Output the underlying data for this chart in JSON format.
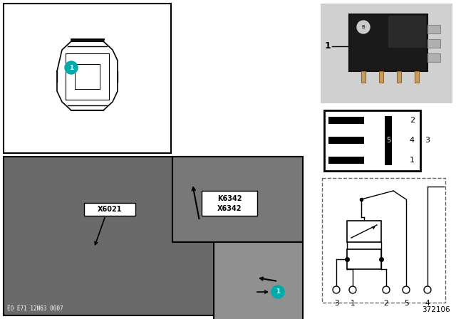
{
  "bg_color": "#ffffff",
  "part_number": "372106",
  "eo_label": "EO E71 12N63 0007",
  "teal_color": "#00AAAA",
  "photo_dark": "#6a6a6a",
  "photo_mid": "#787878",
  "photo_light": "#909090",
  "schematic_pins": [
    "3",
    "1",
    "2",
    "5",
    "4"
  ],
  "pin_labels_face": [
    "2",
    "4",
    "5",
    "3",
    "1"
  ]
}
